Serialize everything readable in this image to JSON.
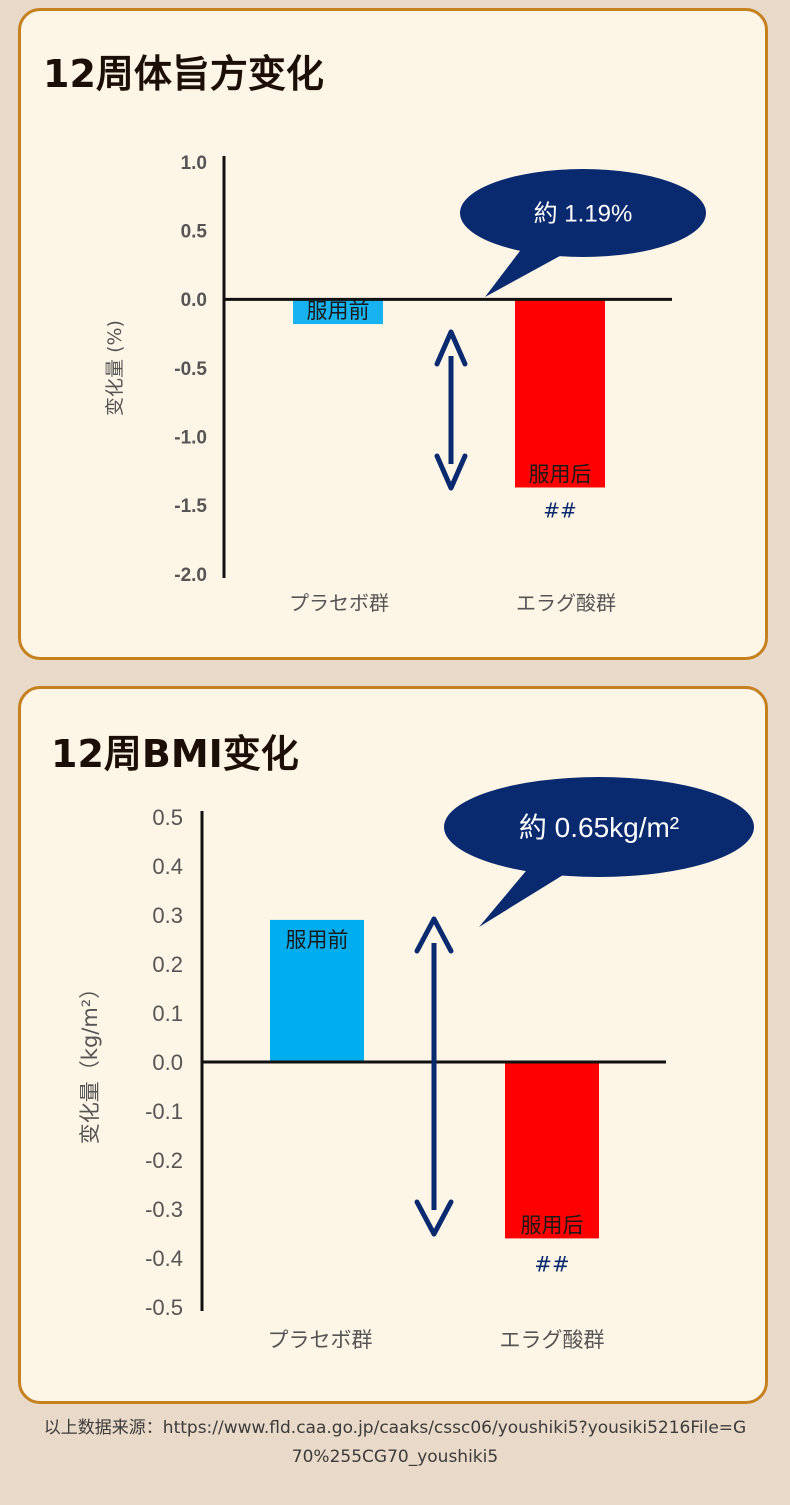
{
  "charts_meta": [
    {
      "title": "12周体旨方变化"
    },
    {
      "title": "12周BMI变化"
    }
  ],
  "chart_data": [
    {
      "type": "bar",
      "title": "12周体旨方变化",
      "ylabel": "变化量 (%)",
      "xlabel": "",
      "ylim": [
        -2.0,
        1.0
      ],
      "yticks": [
        "1.0",
        "0.5",
        "0.0",
        "-0.5",
        "-1.0",
        "-1.5",
        "-2.0"
      ],
      "categories": [
        "プラセボ群",
        "エラグ酸群"
      ],
      "values": [
        -0.18,
        -1.37
      ],
      "bar_colors": [
        "#16b3f0",
        "#ff0000"
      ],
      "bar_labels": [
        "服用前",
        "服用后"
      ],
      "significance": [
        "",
        "##"
      ],
      "annotation": "約 1.19%",
      "grid": false
    },
    {
      "type": "bar",
      "title": "12周BMI变化",
      "ylabel": "变化量（kg/m²）",
      "xlabel": "",
      "ylim": [
        -0.5,
        0.5
      ],
      "yticks": [
        "0.5",
        "0.4",
        "0.3",
        "0.2",
        "0.1",
        "0.0",
        "-0.1",
        "-0.2",
        "-0.3",
        "-0.4",
        "-0.5"
      ],
      "categories": [
        "プラセボ群",
        "エラグ酸群"
      ],
      "values": [
        0.29,
        -0.36
      ],
      "bar_colors": [
        "#00adef",
        "#ff0000"
      ],
      "bar_labels": [
        "服用前",
        "服用后"
      ],
      "significance": [
        "",
        "##"
      ],
      "annotation": "約 0.65kg/m²",
      "grid": false
    }
  ],
  "source": "以上数据来源：https://www.fld.caa.go.jp/caaks/cssc06/youshiki5?yousiki5216File=G70%255CG70_youshiki5",
  "colors": {
    "accent_border": "#c5801f",
    "panel_bg": "#fdf5e6",
    "navy": "#0a2a70",
    "page_bg": "#e9d9c8"
  }
}
